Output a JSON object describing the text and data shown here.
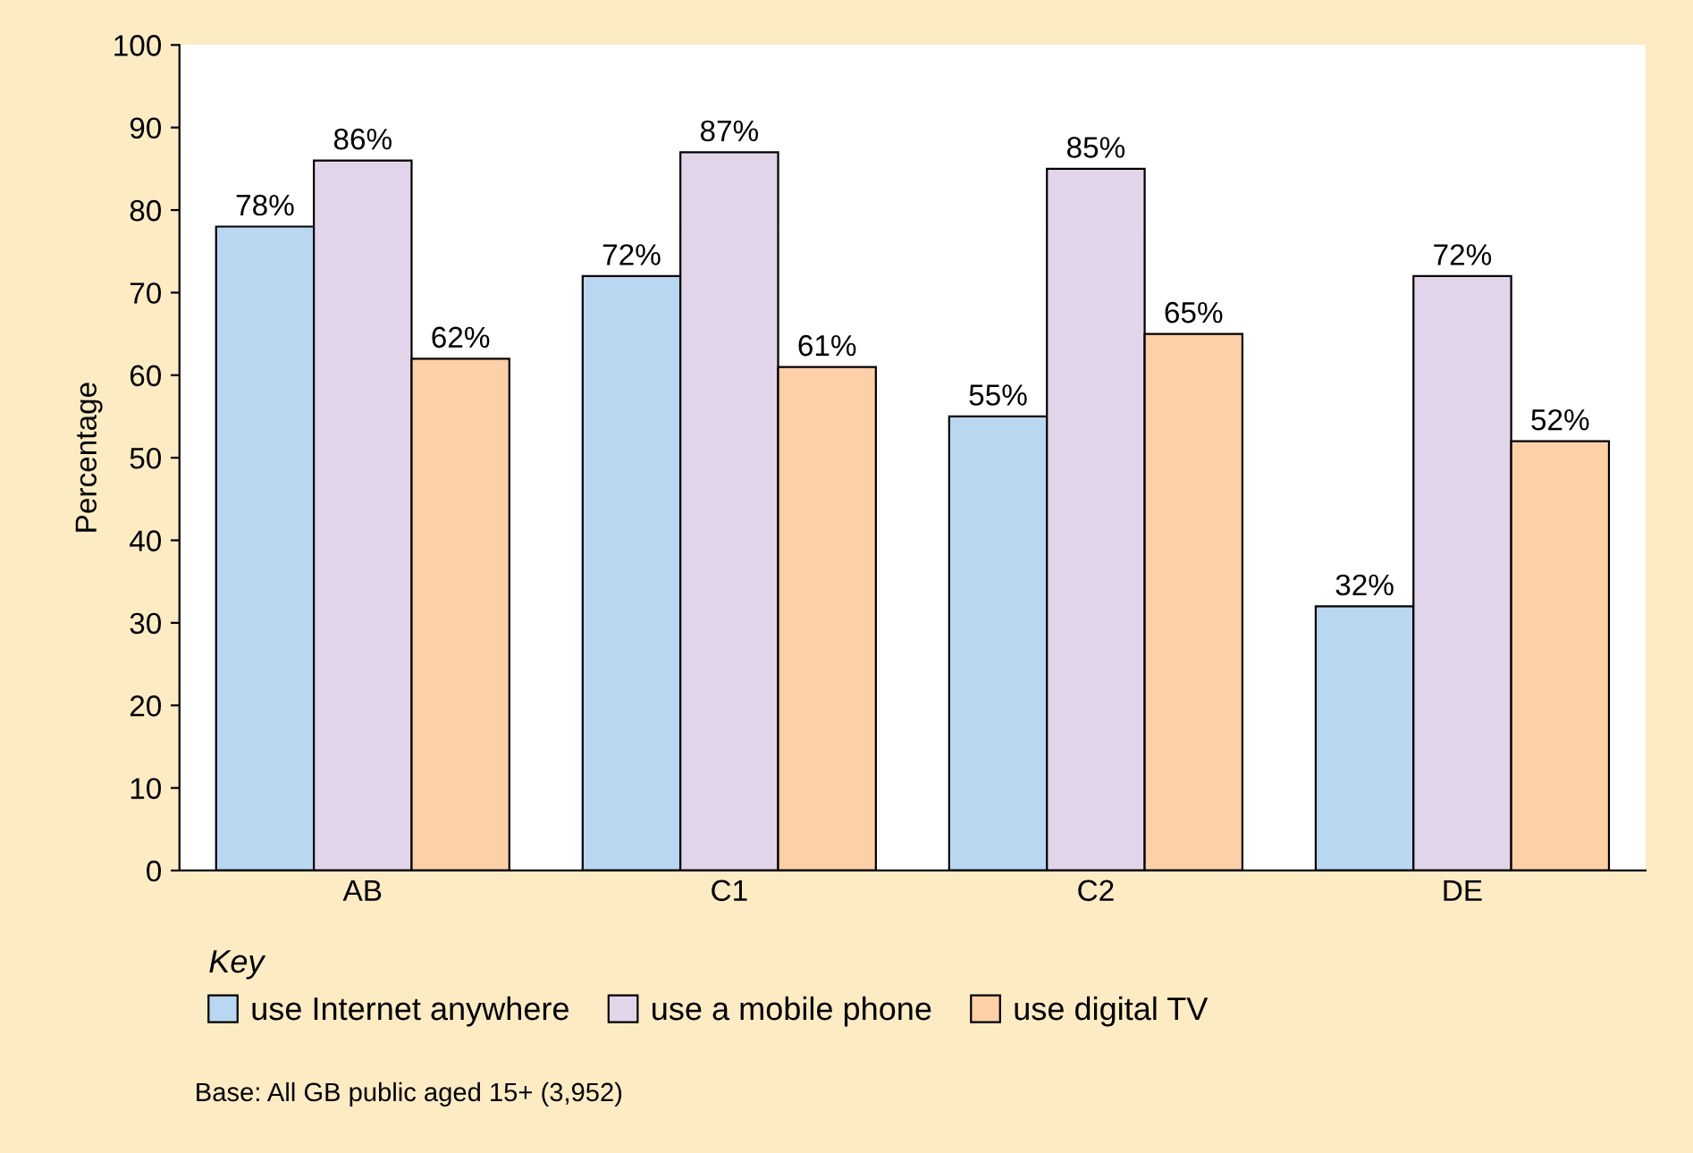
{
  "chart_data": {
    "type": "bar",
    "ylabel": "Percentage",
    "legend_title": "Key",
    "categories": [
      "AB",
      "C1",
      "C2",
      "DE"
    ],
    "series": [
      {
        "name": "use Internet anywhere",
        "color": "#b9d7f0",
        "values": [
          78,
          72,
          55,
          32
        ],
        "value_labels": [
          "78%",
          "72%",
          "55%",
          "32%"
        ]
      },
      {
        "name": "use a mobile phone",
        "color": "#e2d5ea",
        "values": [
          86,
          87,
          85,
          72
        ],
        "value_labels": [
          "86%",
          "87%",
          "85%",
          "72%"
        ]
      },
      {
        "name": "use digital TV",
        "color": "#fdd0a8",
        "values": [
          62,
          61,
          65,
          52
        ],
        "value_labels": [
          "62%",
          "61%",
          "65%",
          "52%"
        ]
      }
    ],
    "ylim": [
      0,
      100
    ],
    "yticks": [
      0,
      10,
      20,
      30,
      40,
      50,
      60,
      70,
      80,
      90,
      100
    ],
    "grid": false,
    "legend": "bottom",
    "annotations": [
      "Base: All GB public aged 15+ (3,952)"
    ]
  }
}
